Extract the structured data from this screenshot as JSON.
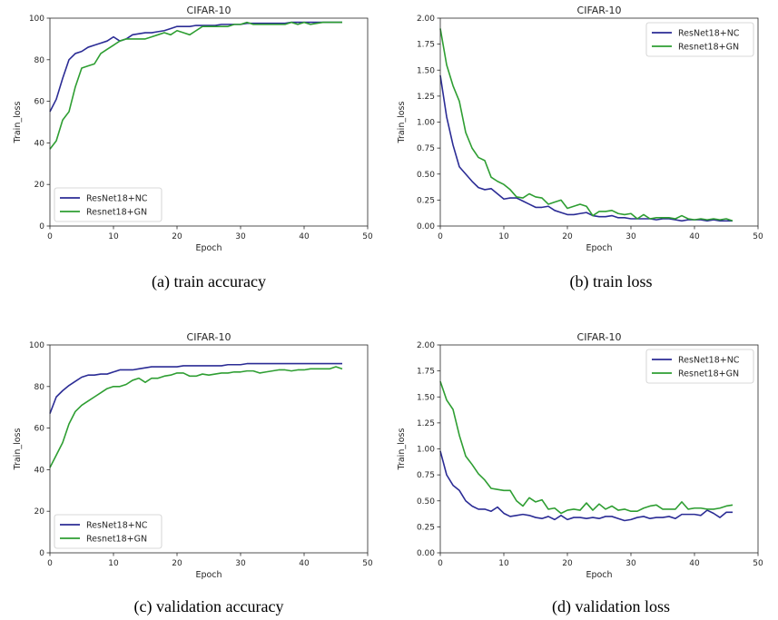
{
  "chart_data": [
    {
      "type": "line",
      "title": "CIFAR-10",
      "xlabel": "Epoch",
      "ylabel": "Train_loss",
      "xlim": [
        0,
        50
      ],
      "ylim": [
        0,
        100
      ],
      "xticks": [
        "0",
        "10",
        "20",
        "30",
        "40",
        "50"
      ],
      "yticks": [
        "0",
        "20",
        "40",
        "60",
        "80",
        "100"
      ],
      "legend_position": "lower-left",
      "caption": "(a) train accuracy",
      "series": [
        {
          "name": "ResNet18+NC",
          "color": "#2b2c95",
          "x": [
            0,
            1,
            2,
            3,
            4,
            5,
            6,
            7,
            8,
            9,
            10,
            11,
            12,
            13,
            14,
            15,
            16,
            17,
            18,
            19,
            20,
            21,
            22,
            23,
            24,
            25,
            26,
            27,
            28,
            29,
            30,
            31,
            32,
            33,
            34,
            35,
            36,
            37,
            38,
            39,
            40,
            41,
            42,
            43,
            44,
            45,
            46
          ],
          "values": [
            55,
            61,
            71,
            80,
            83,
            84,
            86,
            87,
            88,
            89,
            91,
            89,
            90,
            92,
            92.5,
            93,
            93,
            93.5,
            94,
            95,
            96,
            96,
            96,
            96.5,
            96.5,
            96.5,
            96.5,
            97,
            97,
            97,
            97,
            97.5,
            97.5,
            97.5,
            97.5,
            97.5,
            97.5,
            97.5,
            98,
            98,
            98,
            98,
            98,
            98,
            98,
            98,
            98
          ]
        },
        {
          "name": "Resnet18+GN",
          "color": "#2e9e32",
          "x": [
            0,
            1,
            2,
            3,
            4,
            5,
            6,
            7,
            8,
            9,
            10,
            11,
            12,
            13,
            14,
            15,
            16,
            17,
            18,
            19,
            20,
            21,
            22,
            23,
            24,
            25,
            26,
            27,
            28,
            29,
            30,
            31,
            32,
            33,
            34,
            35,
            36,
            37,
            38,
            39,
            40,
            41,
            42,
            43,
            44,
            45,
            46
          ],
          "values": [
            37,
            41,
            51,
            55,
            67,
            76,
            77,
            78,
            83,
            85,
            87,
            89,
            90,
            90,
            90,
            90,
            91,
            92,
            93,
            92,
            94,
            93,
            92,
            94,
            96,
            96,
            96,
            96,
            96,
            97,
            97,
            98,
            97,
            97,
            97,
            97,
            97,
            97,
            98,
            97,
            98,
            97,
            97.5,
            98,
            98,
            98,
            98
          ]
        }
      ]
    },
    {
      "type": "line",
      "title": "CIFAR-10",
      "xlabel": "Epoch",
      "ylabel": "Train_loss",
      "xlim": [
        0,
        50
      ],
      "ylim": [
        0,
        2
      ],
      "xticks": [
        "0",
        "10",
        "20",
        "30",
        "40",
        "50"
      ],
      "yticks": [
        "0.00",
        "0.25",
        "0.50",
        "0.75",
        "1.00",
        "1.25",
        "1.50",
        "1.75",
        "2.00"
      ],
      "legend_position": "upper-right",
      "caption": "(b) train loss",
      "series": [
        {
          "name": "ResNet18+NC",
          "color": "#2b2c95",
          "x": [
            0,
            1,
            2,
            3,
            4,
            5,
            6,
            7,
            8,
            9,
            10,
            11,
            12,
            13,
            14,
            15,
            16,
            17,
            18,
            19,
            20,
            21,
            22,
            23,
            24,
            25,
            26,
            27,
            28,
            29,
            30,
            31,
            32,
            33,
            34,
            35,
            36,
            37,
            38,
            39,
            40,
            41,
            42,
            43,
            44,
            45,
            46
          ],
          "values": [
            1.45,
            1.05,
            0.78,
            0.57,
            0.5,
            0.43,
            0.37,
            0.35,
            0.36,
            0.31,
            0.26,
            0.27,
            0.27,
            0.24,
            0.21,
            0.18,
            0.18,
            0.19,
            0.15,
            0.13,
            0.11,
            0.11,
            0.12,
            0.13,
            0.1,
            0.09,
            0.09,
            0.1,
            0.08,
            0.08,
            0.07,
            0.07,
            0.07,
            0.07,
            0.06,
            0.07,
            0.07,
            0.06,
            0.05,
            0.06,
            0.06,
            0.06,
            0.05,
            0.06,
            0.05,
            0.05,
            0.05
          ]
        },
        {
          "name": "Resnet18+GN",
          "color": "#2e9e32",
          "x": [
            0,
            1,
            2,
            3,
            4,
            5,
            6,
            7,
            8,
            9,
            10,
            11,
            12,
            13,
            14,
            15,
            16,
            17,
            18,
            19,
            20,
            21,
            22,
            23,
            24,
            25,
            26,
            27,
            28,
            29,
            30,
            31,
            32,
            33,
            34,
            35,
            36,
            37,
            38,
            39,
            40,
            41,
            42,
            43,
            44,
            45,
            46
          ],
          "values": [
            1.9,
            1.55,
            1.35,
            1.2,
            0.9,
            0.75,
            0.66,
            0.63,
            0.47,
            0.43,
            0.4,
            0.35,
            0.28,
            0.27,
            0.31,
            0.28,
            0.27,
            0.21,
            0.23,
            0.25,
            0.17,
            0.19,
            0.21,
            0.19,
            0.1,
            0.14,
            0.14,
            0.15,
            0.12,
            0.11,
            0.12,
            0.07,
            0.11,
            0.07,
            0.08,
            0.08,
            0.08,
            0.07,
            0.1,
            0.07,
            0.06,
            0.07,
            0.06,
            0.07,
            0.06,
            0.07,
            0.05
          ]
        }
      ]
    },
    {
      "type": "line",
      "title": "CIFAR-10",
      "xlabel": "Epoch",
      "ylabel": "Train_loss",
      "xlim": [
        0,
        50
      ],
      "ylim": [
        0,
        100
      ],
      "xticks": [
        "0",
        "10",
        "20",
        "30",
        "40",
        "50"
      ],
      "yticks": [
        "0",
        "20",
        "40",
        "60",
        "80",
        "100"
      ],
      "legend_position": "lower-left",
      "caption": "(c) validation accuracy",
      "series": [
        {
          "name": "ResNet18+NC",
          "color": "#2b2c95",
          "x": [
            0,
            1,
            2,
            3,
            4,
            5,
            6,
            7,
            8,
            9,
            10,
            11,
            12,
            13,
            14,
            15,
            16,
            17,
            18,
            19,
            20,
            21,
            22,
            23,
            24,
            25,
            26,
            27,
            28,
            29,
            30,
            31,
            32,
            33,
            34,
            35,
            36,
            37,
            38,
            39,
            40,
            41,
            42,
            43,
            44,
            45,
            46
          ],
          "values": [
            67,
            75,
            78,
            80.5,
            82.5,
            84.5,
            85.5,
            85.5,
            86,
            86,
            87,
            88,
            88,
            88,
            88.5,
            89,
            89.5,
            89.5,
            89.5,
            89.5,
            89.5,
            90,
            90,
            90,
            90,
            90,
            90,
            90,
            90.5,
            90.5,
            90.5,
            91,
            91,
            91,
            91,
            91,
            91,
            91,
            91,
            91,
            91,
            91,
            91,
            91,
            91,
            91,
            91
          ]
        },
        {
          "name": "Resnet18+GN",
          "color": "#2e9e32",
          "x": [
            0,
            1,
            2,
            3,
            4,
            5,
            6,
            7,
            8,
            9,
            10,
            11,
            12,
            13,
            14,
            15,
            16,
            17,
            18,
            19,
            20,
            21,
            22,
            23,
            24,
            25,
            26,
            27,
            28,
            29,
            30,
            31,
            32,
            33,
            34,
            35,
            36,
            37,
            38,
            39,
            40,
            41,
            42,
            43,
            44,
            45,
            46
          ],
          "values": [
            41,
            47,
            53,
            62,
            68,
            71,
            73,
            75,
            77,
            79,
            80,
            80,
            81,
            83,
            84,
            82,
            84,
            84,
            85,
            85.5,
            86.5,
            86.5,
            85,
            85,
            86,
            85.5,
            86,
            86.5,
            86.5,
            87,
            87,
            87.5,
            87.5,
            86.5,
            87,
            87.5,
            88,
            88,
            87.5,
            88,
            88,
            88.5,
            88.5,
            88.5,
            88.5,
            89.5,
            88.5
          ]
        }
      ]
    },
    {
      "type": "line",
      "title": "CIFAR-10",
      "xlabel": "Epoch",
      "ylabel": "Train_loss",
      "xlim": [
        0,
        50
      ],
      "ylim": [
        0,
        2
      ],
      "xticks": [
        "0",
        "10",
        "20",
        "30",
        "40",
        "50"
      ],
      "yticks": [
        "0.00",
        "0.25",
        "0.50",
        "0.75",
        "1.00",
        "1.25",
        "1.50",
        "1.75",
        "2.00"
      ],
      "legend_position": "upper-right",
      "caption": "(d) validation loss",
      "series": [
        {
          "name": "ResNet18+NC",
          "color": "#2b2c95",
          "x": [
            0,
            1,
            2,
            3,
            4,
            5,
            6,
            7,
            8,
            9,
            10,
            11,
            12,
            13,
            14,
            15,
            16,
            17,
            18,
            19,
            20,
            21,
            22,
            23,
            24,
            25,
            26,
            27,
            28,
            29,
            30,
            31,
            32,
            33,
            34,
            35,
            36,
            37,
            38,
            39,
            40,
            41,
            42,
            43,
            44,
            45,
            46
          ],
          "values": [
            0.98,
            0.75,
            0.65,
            0.6,
            0.5,
            0.45,
            0.42,
            0.42,
            0.4,
            0.44,
            0.38,
            0.35,
            0.36,
            0.37,
            0.36,
            0.34,
            0.33,
            0.35,
            0.32,
            0.36,
            0.32,
            0.34,
            0.34,
            0.33,
            0.34,
            0.33,
            0.35,
            0.35,
            0.33,
            0.31,
            0.32,
            0.34,
            0.35,
            0.33,
            0.34,
            0.34,
            0.35,
            0.33,
            0.37,
            0.37,
            0.37,
            0.36,
            0.41,
            0.38,
            0.34,
            0.39,
            0.39
          ]
        },
        {
          "name": "Resnet18+GN",
          "color": "#2e9e32",
          "x": [
            0,
            1,
            2,
            3,
            4,
            5,
            6,
            7,
            8,
            9,
            10,
            11,
            12,
            13,
            14,
            15,
            16,
            17,
            18,
            19,
            20,
            21,
            22,
            23,
            24,
            25,
            26,
            27,
            28,
            29,
            30,
            31,
            32,
            33,
            34,
            35,
            36,
            37,
            38,
            39,
            40,
            41,
            42,
            43,
            44,
            45,
            46
          ],
          "values": [
            1.65,
            1.47,
            1.38,
            1.13,
            0.93,
            0.85,
            0.76,
            0.7,
            0.62,
            0.61,
            0.6,
            0.6,
            0.5,
            0.45,
            0.53,
            0.49,
            0.51,
            0.42,
            0.43,
            0.38,
            0.41,
            0.42,
            0.41,
            0.48,
            0.41,
            0.47,
            0.42,
            0.45,
            0.41,
            0.42,
            0.4,
            0.4,
            0.43,
            0.45,
            0.46,
            0.42,
            0.42,
            0.42,
            0.49,
            0.42,
            0.43,
            0.43,
            0.42,
            0.42,
            0.43,
            0.45,
            0.46
          ]
        }
      ]
    }
  ]
}
